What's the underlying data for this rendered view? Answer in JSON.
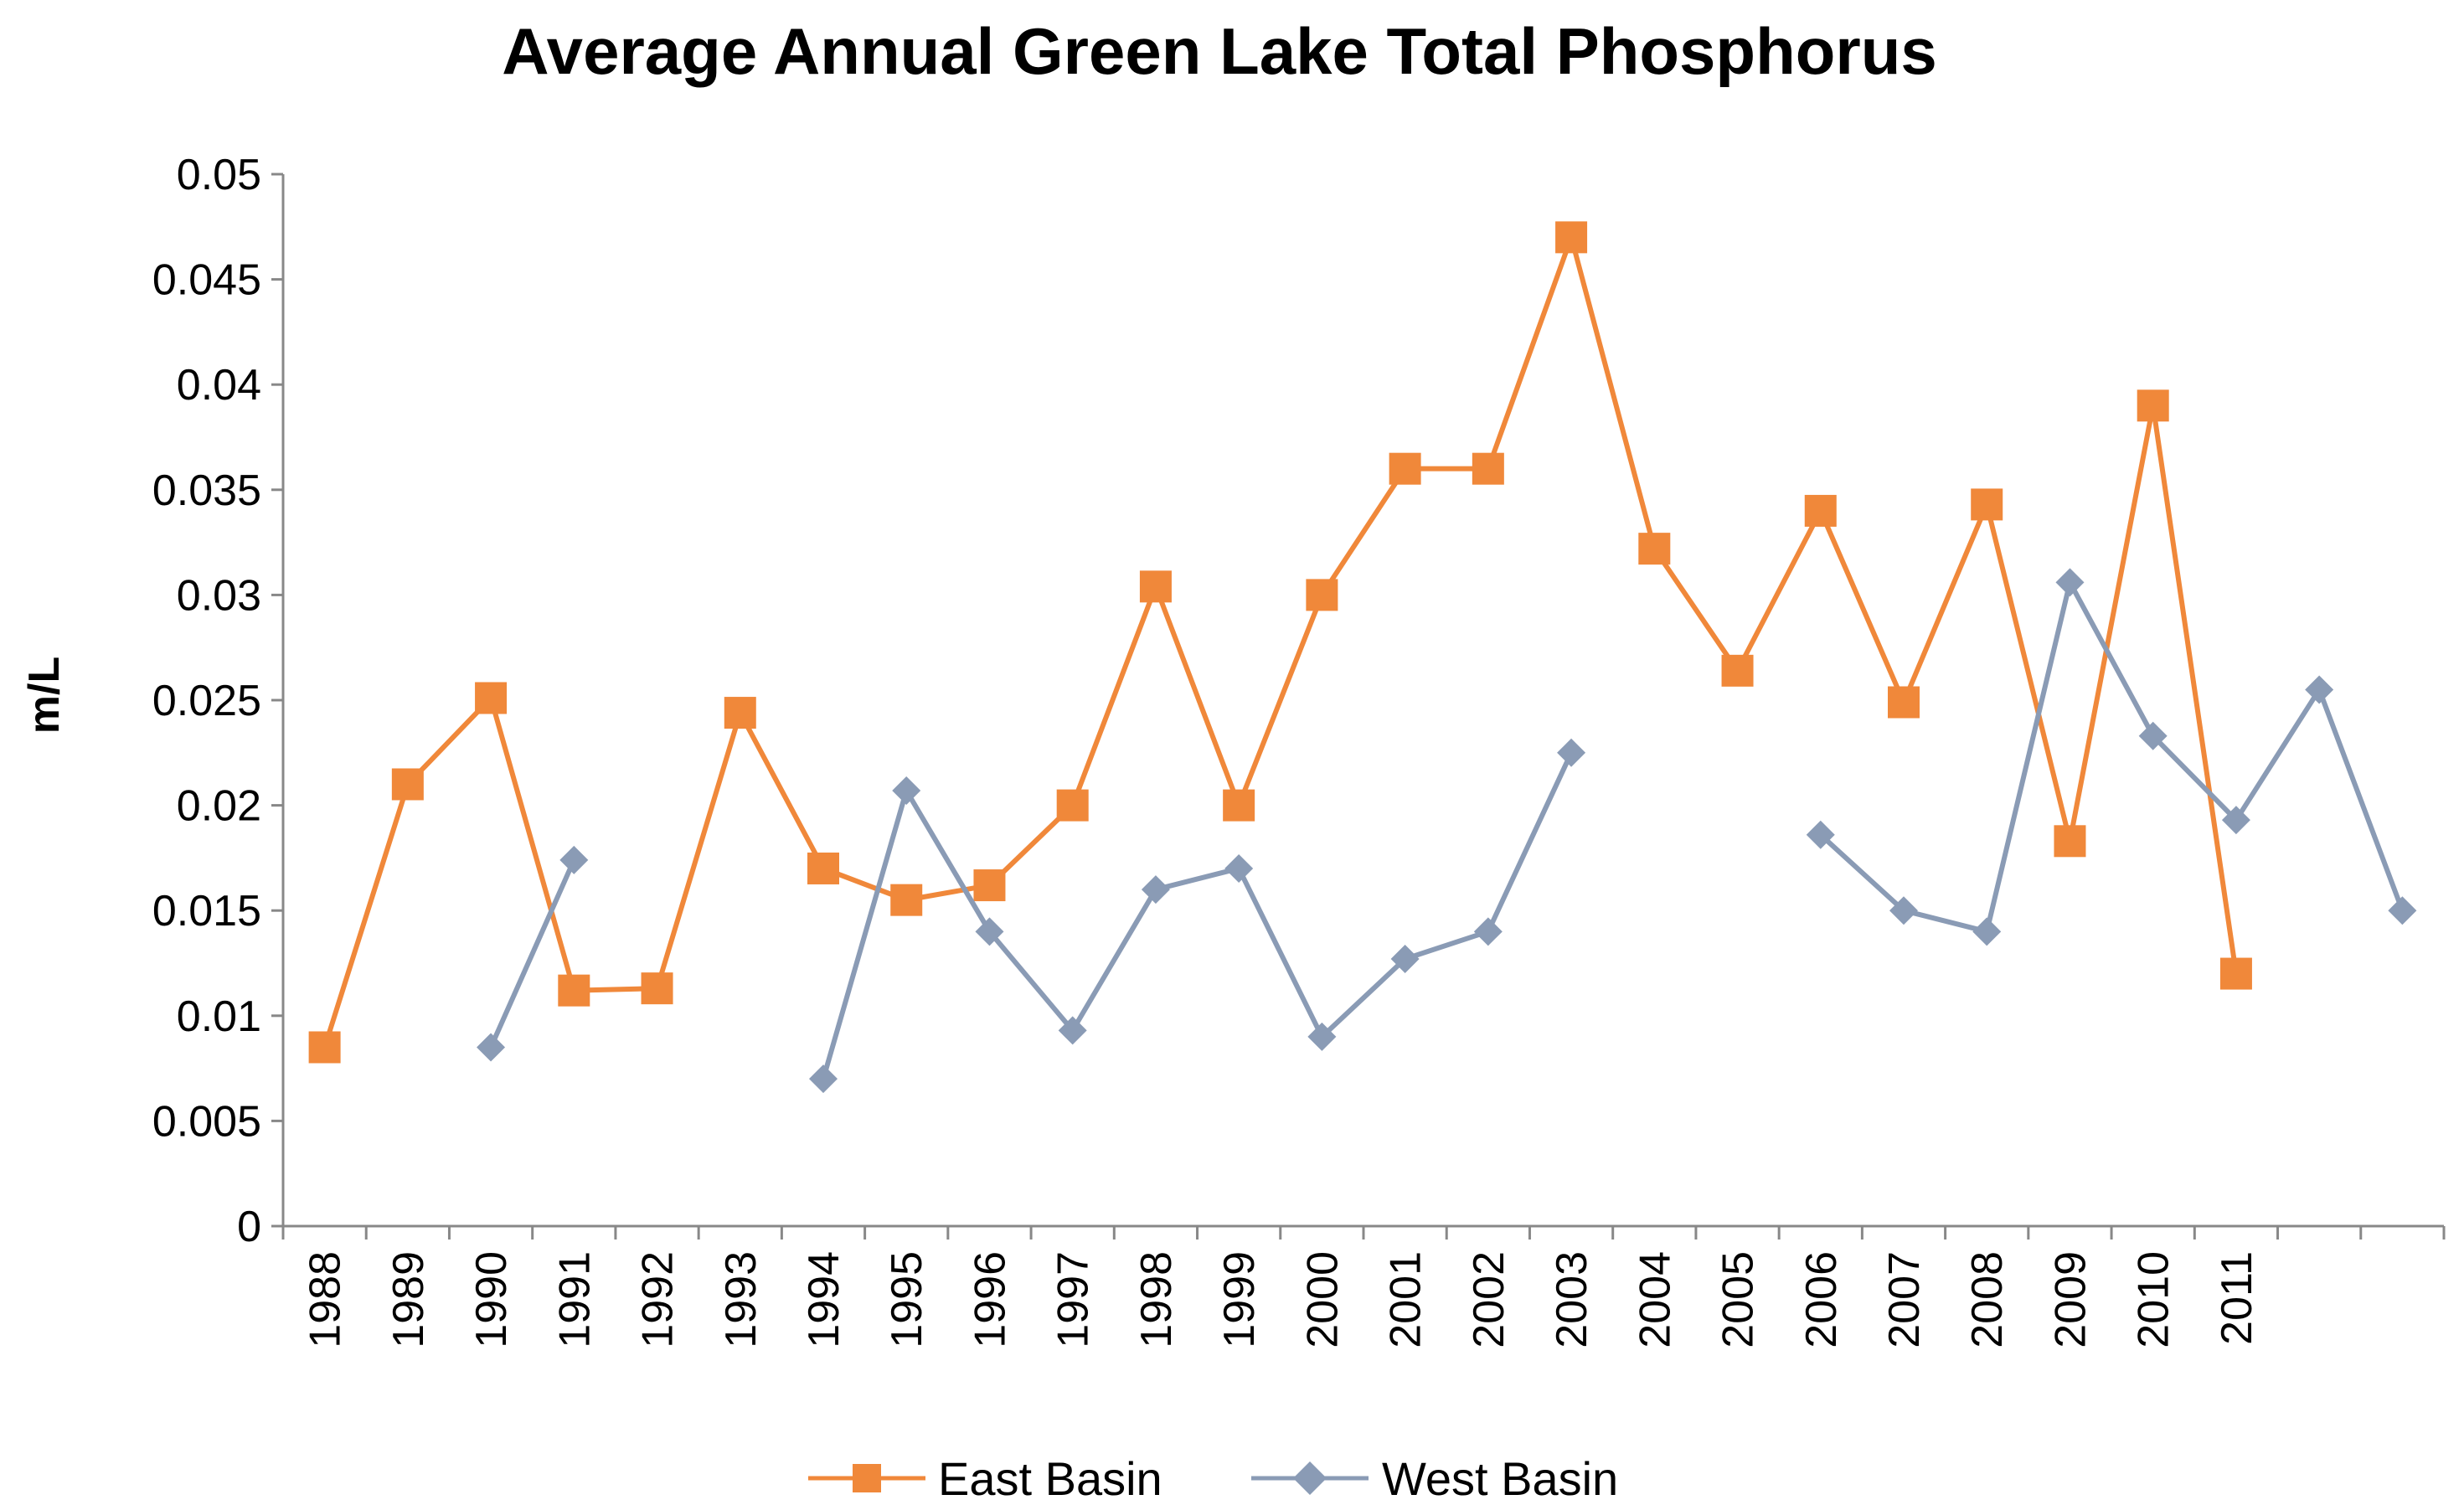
{
  "chart_data": {
    "type": "line",
    "title": "Average Annual Green Lake Total Phosphorus",
    "xlabel": "",
    "ylabel": "m/L",
    "categories": [
      "1988",
      "1989",
      "1990",
      "1991",
      "1992",
      "1993",
      "1994",
      "1995",
      "1996",
      "1997",
      "1998",
      "1999",
      "2000",
      "2001",
      "2002",
      "2003",
      "2004",
      "2005",
      "2006",
      "2007",
      "2008",
      "2009",
      "2010",
      "2011",
      "",
      ""
    ],
    "ylim": [
      0,
      0.05
    ],
    "yticks": [
      0,
      0.005,
      0.01,
      0.015,
      0.02,
      0.025,
      0.03,
      0.035,
      0.04,
      0.045,
      0.05
    ],
    "ytick_labels": [
      "0",
      "0.005",
      "0.01",
      "0.015",
      "0.02",
      "0.025",
      "0.03",
      "0.035",
      "0.04",
      "0.045",
      "0.05"
    ],
    "grid": false,
    "legend_position": "bottom",
    "series": [
      {
        "name": "East Basin",
        "color": "#F0883A",
        "marker": "square",
        "values": [
          0.0085,
          0.021,
          0.0251,
          0.0112,
          0.0113,
          0.0244,
          0.017,
          0.0155,
          0.0162,
          0.02,
          0.0304,
          0.02,
          0.03,
          0.036,
          0.036,
          0.047,
          0.0322,
          0.0264,
          0.034,
          0.0249,
          0.0343,
          0.0183,
          0.039,
          0.012,
          null,
          null
        ]
      },
      {
        "name": "West Basin",
        "color": "#8A9BB5",
        "marker": "diamond",
        "values": [
          null,
          null,
          0.0085,
          0.0174,
          null,
          null,
          0.007,
          0.0207,
          0.014,
          0.0093,
          0.016,
          0.017,
          0.009,
          0.0127,
          0.014,
          0.0225,
          null,
          null,
          0.0186,
          0.015,
          0.014,
          0.0306,
          0.0233,
          0.0193,
          0.0255,
          0.015
        ]
      }
    ]
  }
}
